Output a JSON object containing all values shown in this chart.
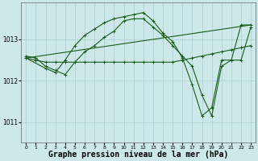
{
  "background_color": "#cce8e8",
  "grid_color": "#aacfcf",
  "line_color": "#1a5c1a",
  "xlabel": "Graphe pression niveau de la mer (hPa)",
  "xlabel_fontsize": 7,
  "ylim": [
    1010.5,
    1013.9
  ],
  "xlim": [
    -0.5,
    23.5
  ],
  "yticks": [
    1011,
    1012,
    1013
  ],
  "xticks": [
    0,
    1,
    2,
    3,
    4,
    5,
    6,
    7,
    8,
    9,
    10,
    11,
    12,
    13,
    14,
    15,
    16,
    17,
    18,
    19,
    20,
    21,
    22,
    23
  ],
  "series": [
    {
      "x": [
        0,
        2,
        3,
        4,
        5,
        6,
        7,
        8,
        9,
        10,
        11,
        12,
        13,
        14,
        15,
        16,
        17,
        18,
        19,
        20,
        21,
        22,
        23
      ],
      "y": [
        1012.55,
        1012.3,
        1012.2,
        1012.5,
        1012.85,
        1013.1,
        1013.25,
        1013.4,
        1013.5,
        1013.55,
        1013.6,
        1013.65,
        1013.45,
        1013.15,
        1012.95,
        1012.55,
        1011.9,
        1011.15,
        1011.35,
        1012.5,
        1012.5,
        1013.35,
        1013.35
      ]
    },
    {
      "x": [
        0,
        1,
        2,
        3,
        4,
        5,
        6,
        7,
        8,
        9,
        10,
        11,
        12,
        13,
        14,
        15,
        16,
        17,
        18,
        19,
        20,
        21,
        22,
        23
      ],
      "y": [
        1012.6,
        1012.55,
        1012.35,
        1012.25,
        1012.15,
        1012.45,
        1012.7,
        1012.85,
        1013.05,
        1013.2,
        1013.45,
        1013.5,
        1013.5,
        1013.3,
        1013.1,
        1012.85,
        1012.6,
        1012.35,
        1011.65,
        1011.15,
        1012.35,
        1012.5,
        1012.5,
        1013.3
      ]
    },
    {
      "x": [
        0,
        1,
        2,
        3,
        4,
        5,
        6,
        7,
        8,
        9,
        10,
        11,
        12,
        13,
        14,
        15,
        16,
        17,
        18,
        19,
        20,
        21,
        22,
        23
      ],
      "y": [
        1012.55,
        1012.5,
        1012.45,
        1012.45,
        1012.45,
        1012.45,
        1012.45,
        1012.45,
        1012.45,
        1012.45,
        1012.45,
        1012.45,
        1012.45,
        1012.45,
        1012.45,
        1012.45,
        1012.5,
        1012.55,
        1012.6,
        1012.65,
        1012.7,
        1012.75,
        1012.8,
        1012.85
      ]
    },
    {
      "x": [
        0,
        23
      ],
      "y": [
        1012.55,
        1013.35
      ]
    }
  ]
}
